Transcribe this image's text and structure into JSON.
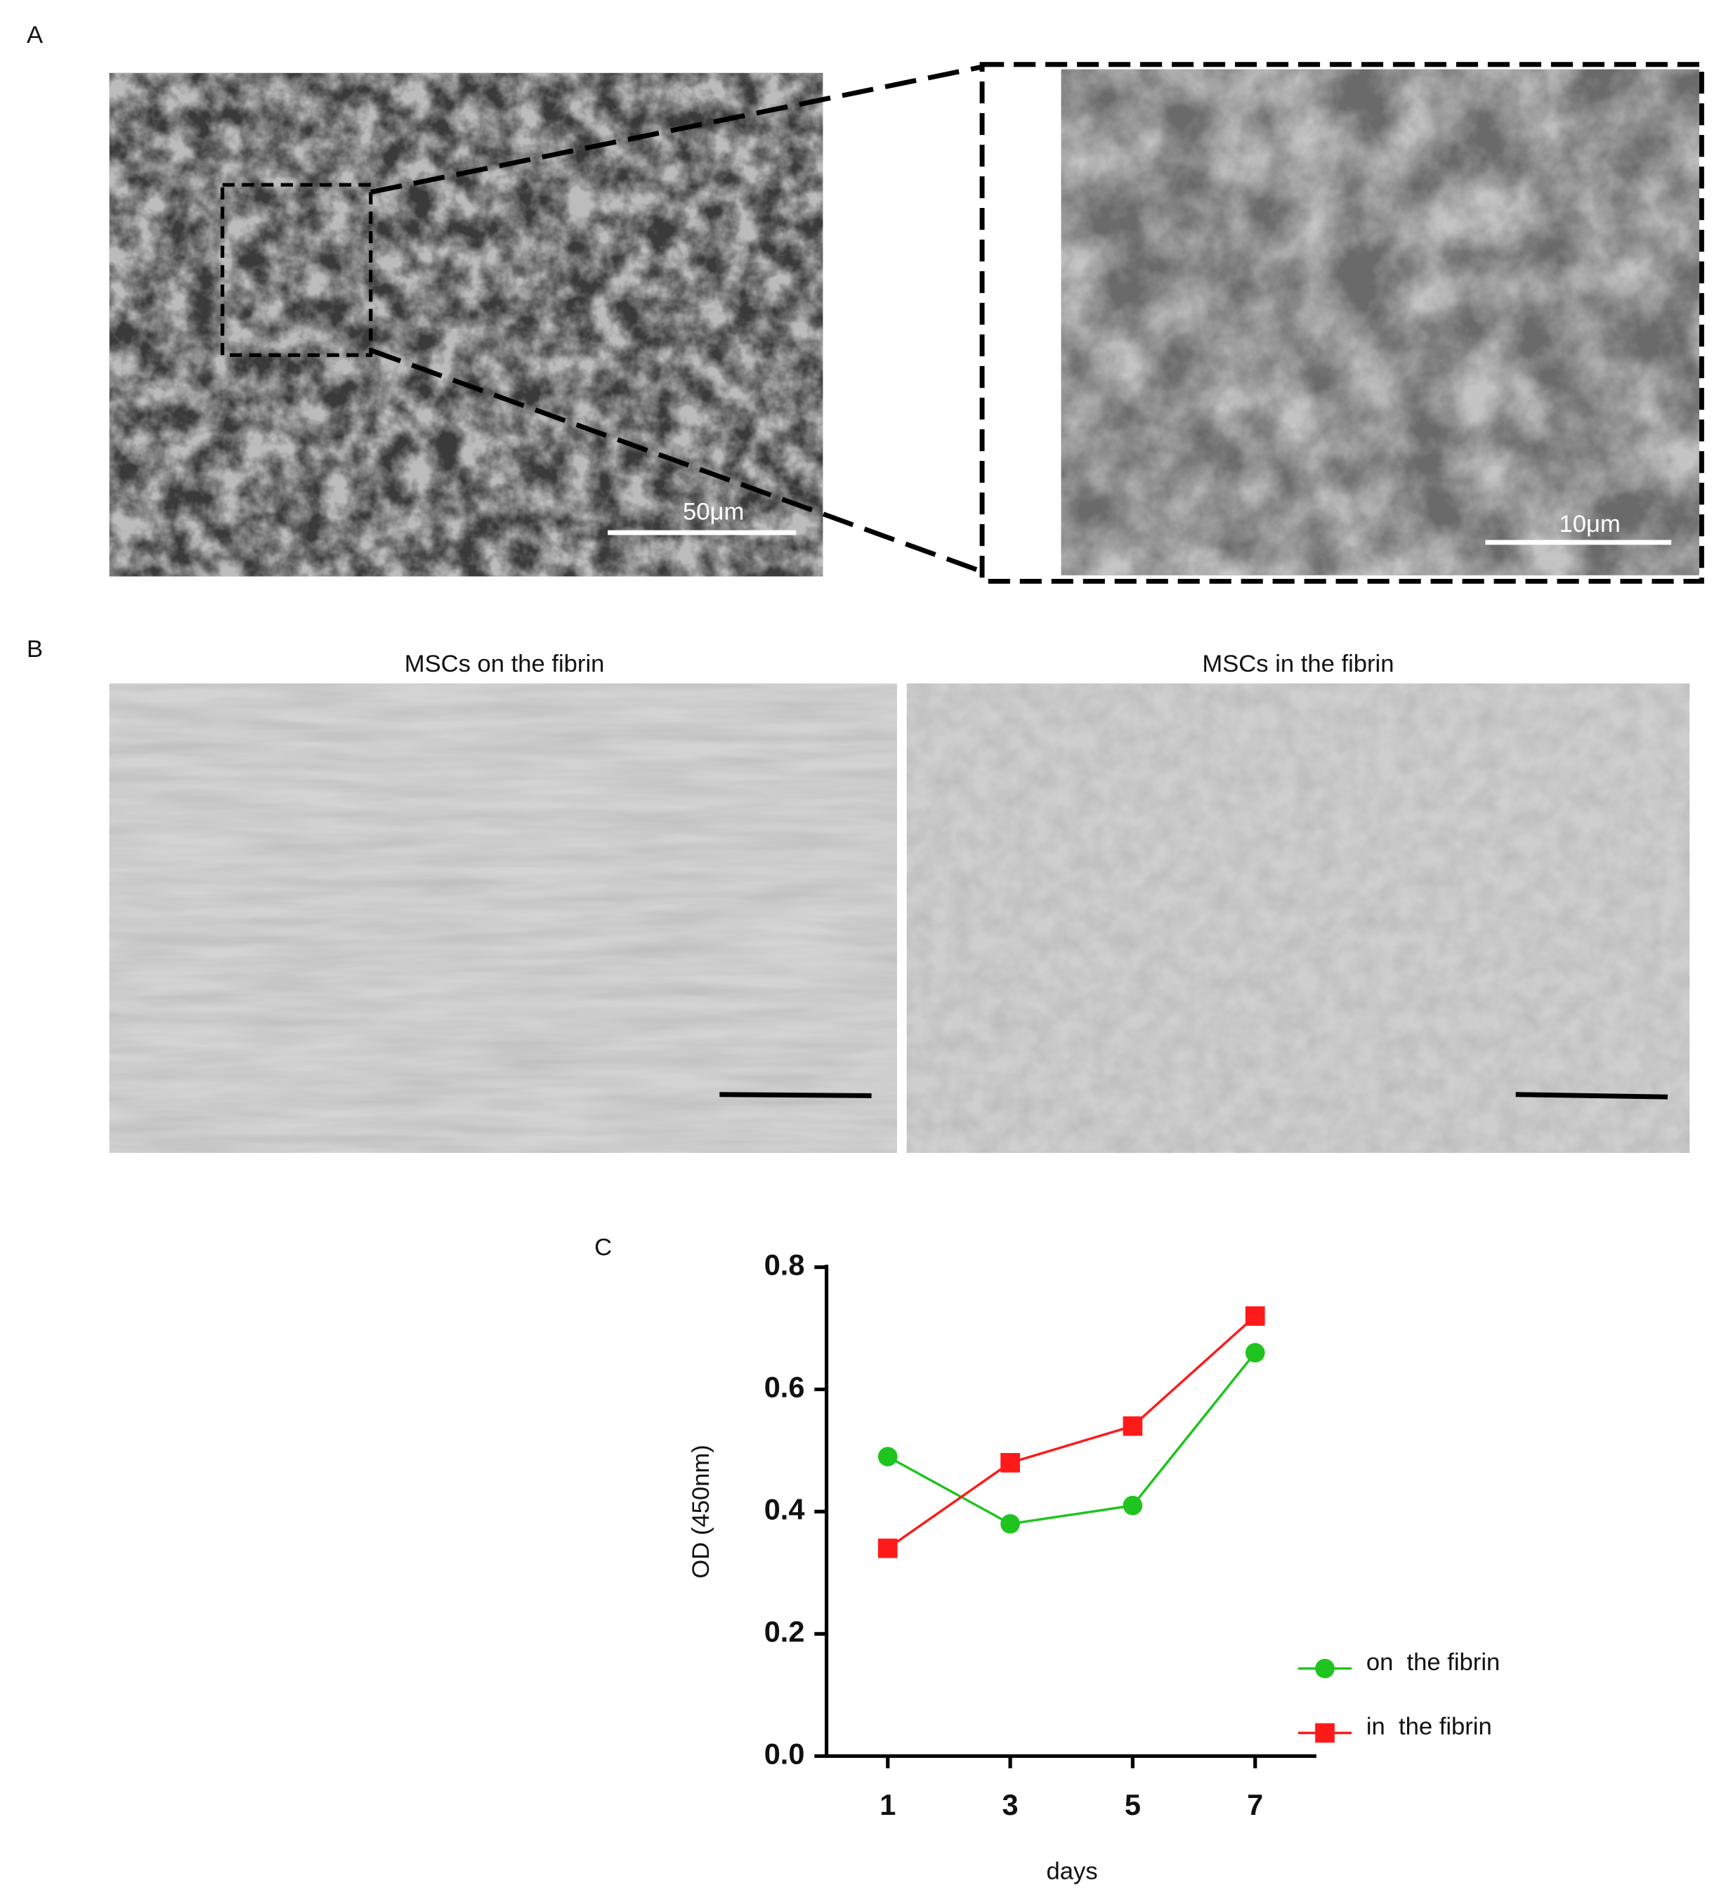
{
  "panels": {
    "a": {
      "label": "A",
      "scale_bar_main": "50μm",
      "scale_bar_zoom": "10μm"
    },
    "b": {
      "label": "B",
      "titles": [
        "MSCs on the fibrin",
        "MSCs in the fibrin"
      ]
    },
    "c": {
      "label": "C"
    }
  },
  "chart_data": {
    "type": "line",
    "xlabel": "days",
    "ylabel": "OD (450nm)",
    "x": [
      1,
      3,
      5,
      7
    ],
    "xlim": [
      0,
      8
    ],
    "xticks": [
      1,
      3,
      5,
      7
    ],
    "ylim": [
      0,
      0.8
    ],
    "yticks": [
      {
        "value": 0,
        "label": "0.0"
      },
      0.2,
      0.4,
      0.6,
      0.8
    ],
    "grid": false,
    "legend": "lower right",
    "series": [
      {
        "name": "on  the fibrin",
        "color": "#1fc41f",
        "marker": "circle",
        "values": [
          0.49,
          0.38,
          0.41,
          0.66
        ]
      },
      {
        "name": "in  the fibrin",
        "color": "#ff1a1a",
        "marker": "square",
        "values": [
          0.34,
          0.48,
          0.54,
          0.72
        ]
      }
    ]
  }
}
